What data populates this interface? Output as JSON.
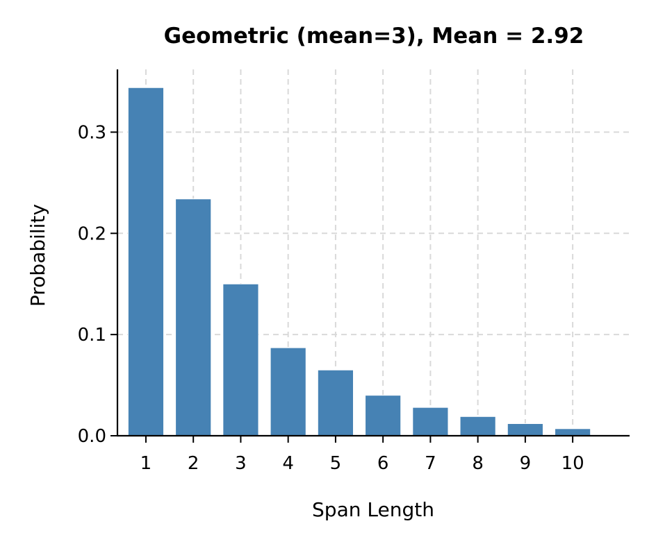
{
  "chart_data": {
    "type": "bar",
    "title": "Geometric (mean=3), Mean = 2.92",
    "xlabel": "Span Length",
    "ylabel": "Probability",
    "categories": [
      "1",
      "2",
      "3",
      "4",
      "5",
      "6",
      "7",
      "8",
      "9",
      "10"
    ],
    "x": [
      1,
      2,
      3,
      4,
      5,
      6,
      7,
      8,
      9,
      10
    ],
    "values": [
      0.344,
      0.234,
      0.15,
      0.087,
      0.065,
      0.04,
      0.028,
      0.019,
      0.012,
      0.007
    ],
    "xlim": [
      0.4,
      11.2
    ],
    "ylim": [
      0,
      0.362
    ],
    "yticks": [
      0.0,
      0.1,
      0.2,
      0.3
    ],
    "ytick_labels": [
      "0.0",
      "0.1",
      "0.2",
      "0.3"
    ],
    "grid": true,
    "bar_color": "#4682b4"
  }
}
